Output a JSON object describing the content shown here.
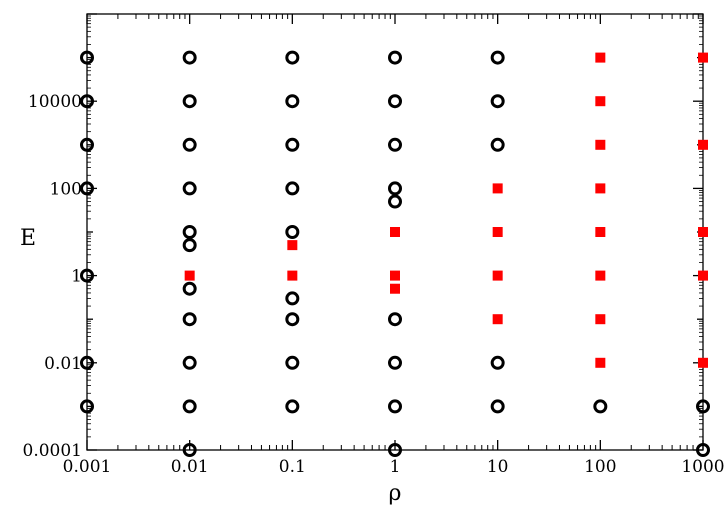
{
  "chart_data": {
    "type": "scatter",
    "xlabel": "ρ",
    "ylabel": "E",
    "x_scale": "log",
    "y_scale": "log",
    "xlim": [
      0.001,
      1000
    ],
    "ylim": [
      0.0001,
      1000000
    ],
    "grid": false,
    "x_ticks": [
      {
        "value": 0.001,
        "label": "0.001"
      },
      {
        "value": 0.01,
        "label": "0.01"
      },
      {
        "value": 0.1,
        "label": "0.1"
      },
      {
        "value": 1,
        "label": "1"
      },
      {
        "value": 10,
        "label": "10"
      },
      {
        "value": 100,
        "label": "100"
      },
      {
        "value": 1000,
        "label": "1000"
      }
    ],
    "y_ticks": [
      {
        "value": 0.0001,
        "label": "0.0001"
      },
      {
        "value": 0.01,
        "label": "0.01"
      },
      {
        "value": 1,
        "label": "1"
      },
      {
        "value": 100,
        "label": "100"
      },
      {
        "value": 10000,
        "label": "10000"
      }
    ],
    "series": [
      {
        "marker": "open-circle",
        "color": "#000000",
        "points": [
          [
            0.001,
            0.001
          ],
          [
            0.001,
            0.01
          ],
          [
            0.001,
            1
          ],
          [
            0.001,
            100
          ],
          [
            0.001,
            1000
          ],
          [
            0.001,
            10000
          ],
          [
            0.001,
            100000
          ],
          [
            0.01,
            0.0001
          ],
          [
            0.01,
            0.001
          ],
          [
            0.01,
            0.01
          ],
          [
            0.01,
            0.1
          ],
          [
            0.01,
            0.5
          ],
          [
            0.01,
            5
          ],
          [
            0.01,
            10
          ],
          [
            0.01,
            100
          ],
          [
            0.01,
            1000
          ],
          [
            0.01,
            10000
          ],
          [
            0.01,
            100000
          ],
          [
            0.1,
            0.001
          ],
          [
            0.1,
            0.01
          ],
          [
            0.1,
            0.1
          ],
          [
            0.1,
            0.3
          ],
          [
            0.1,
            10
          ],
          [
            0.1,
            100
          ],
          [
            0.1,
            1000
          ],
          [
            0.1,
            10000
          ],
          [
            0.1,
            100000
          ],
          [
            1,
            0.0001
          ],
          [
            1,
            0.001
          ],
          [
            1,
            0.01
          ],
          [
            1,
            0.1
          ],
          [
            1,
            50
          ],
          [
            1,
            100
          ],
          [
            1,
            1000
          ],
          [
            1,
            10000
          ],
          [
            1,
            100000
          ],
          [
            10,
            0.001
          ],
          [
            10,
            0.01
          ],
          [
            10,
            1000
          ],
          [
            10,
            10000
          ],
          [
            10,
            100000
          ],
          [
            100,
            0.001
          ],
          [
            1000,
            0.0001
          ],
          [
            1000,
            0.001
          ]
        ]
      },
      {
        "marker": "filled-square",
        "color": "#ff0000",
        "points": [
          [
            0.01,
            1
          ],
          [
            0.1,
            1
          ],
          [
            0.1,
            5
          ],
          [
            1,
            0.5
          ],
          [
            1,
            1
          ],
          [
            1,
            10
          ],
          [
            10,
            0.1
          ],
          [
            10,
            1
          ],
          [
            10,
            10
          ],
          [
            10,
            100
          ],
          [
            100,
            0.01
          ],
          [
            100,
            0.1
          ],
          [
            100,
            1
          ],
          [
            100,
            10
          ],
          [
            100,
            100
          ],
          [
            100,
            1000
          ],
          [
            100,
            10000
          ],
          [
            100,
            100000
          ],
          [
            1000,
            0.01
          ],
          [
            1000,
            1
          ],
          [
            1000,
            10
          ],
          [
            1000,
            1000
          ],
          [
            1000,
            100000
          ]
        ]
      }
    ]
  }
}
